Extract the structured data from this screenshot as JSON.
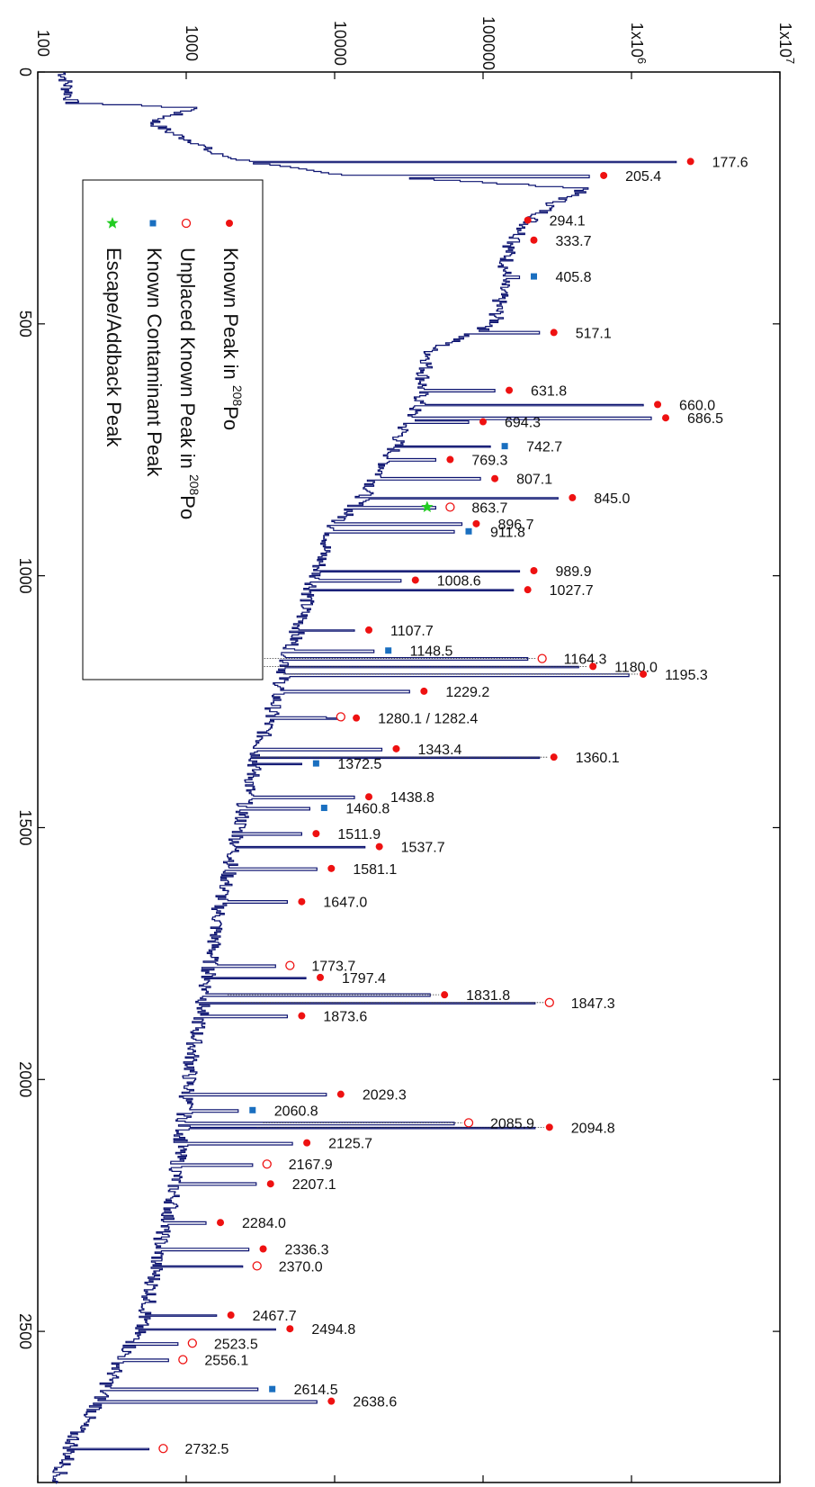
{
  "chart_data": {
    "type": "line",
    "orientation": "rotated-90",
    "x_axis": {
      "label": "",
      "range": [
        0,
        2800
      ],
      "ticks": [
        0,
        500,
        1000,
        1500,
        2000,
        2500
      ],
      "tick_labels": [
        "0",
        "500",
        "1000",
        "1500",
        "2000",
        "2500"
      ]
    },
    "y_axis": {
      "label": "",
      "scale": "log",
      "range": [
        100,
        10000000
      ],
      "ticks": [
        100,
        1000,
        10000,
        100000,
        1000000,
        10000000
      ],
      "tick_labels": [
        "100",
        "1000",
        "10000",
        "100000",
        "1x10^6",
        "1x10^7"
      ]
    },
    "spectrum": [
      [
        0,
        150
      ],
      [
        60,
        170
      ],
      [
        70,
        1200
      ],
      [
        80,
        900
      ],
      [
        90,
        700
      ],
      [
        100,
        600
      ],
      [
        120,
        800
      ],
      [
        140,
        1200
      ],
      [
        160,
        1500
      ],
      [
        180,
        3000
      ],
      [
        200,
        9000
      ],
      [
        230,
        500000
      ],
      [
        260,
        300000
      ],
      [
        300,
        200000
      ],
      [
        350,
        150000
      ],
      [
        400,
        140000
      ],
      [
        450,
        130000
      ],
      [
        500,
        120000
      ],
      [
        550,
        45000
      ],
      [
        600,
        40000
      ],
      [
        650,
        38000
      ],
      [
        700,
        30000
      ],
      [
        750,
        25000
      ],
      [
        800,
        20000
      ],
      [
        850,
        15000
      ],
      [
        900,
        10000
      ],
      [
        950,
        8500
      ],
      [
        1000,
        7500
      ],
      [
        1050,
        6500
      ],
      [
        1100,
        5800
      ],
      [
        1150,
        5000
      ],
      [
        1200,
        4500
      ],
      [
        1250,
        4000
      ],
      [
        1300,
        3500
      ],
      [
        1350,
        3000
      ],
      [
        1400,
        2800
      ],
      [
        1450,
        2500
      ],
      [
        1500,
        2300
      ],
      [
        1550,
        2100
      ],
      [
        1600,
        1900
      ],
      [
        1650,
        1700
      ],
      [
        1700,
        1600
      ],
      [
        1750,
        1500
      ],
      [
        1800,
        1400
      ],
      [
        1850,
        1300
      ],
      [
        1900,
        1200
      ],
      [
        1950,
        1100
      ],
      [
        2000,
        1050
      ],
      [
        2050,
        1000
      ],
      [
        2100,
        950
      ],
      [
        2150,
        900
      ],
      [
        2200,
        850
      ],
      [
        2250,
        800
      ],
      [
        2300,
        700
      ],
      [
        2350,
        650
      ],
      [
        2400,
        600
      ],
      [
        2450,
        550
      ],
      [
        2500,
        480
      ],
      [
        2550,
        380
      ],
      [
        2600,
        300
      ],
      [
        2650,
        250
      ],
      [
        2700,
        180
      ],
      [
        2750,
        160
      ],
      [
        2800,
        130
      ]
    ],
    "legend": {
      "placement": "top-left",
      "entries": [
        {
          "marker": "filled-circle",
          "color": "#ee1111",
          "text": "Known Peak in ",
          "sup": "208",
          "suffix": "Po"
        },
        {
          "marker": "open-circle",
          "color": "#ee1111",
          "text": "Unplaced Known Peak in ",
          "sup": "208",
          "suffix": "Po"
        },
        {
          "marker": "square",
          "color": "#1a6fc0",
          "text": "Known Contaminant Peak",
          "sup": "",
          "suffix": ""
        },
        {
          "marker": "star",
          "color": "#22cc22",
          "text": "Escape/Addback Peak",
          "sup": "",
          "suffix": ""
        }
      ]
    },
    "peaks": [
      {
        "energy": 177.6,
        "counts": 2500000,
        "marker": "filled-circle",
        "label": "177.6",
        "line": false
      },
      {
        "energy": 205.4,
        "counts": 650000,
        "marker": "filled-circle",
        "label": "205.4",
        "line": false
      },
      {
        "energy": 294.1,
        "counts": 200000,
        "marker": "filled-circle",
        "label": "294.1",
        "line": false
      },
      {
        "energy": 333.7,
        "counts": 220000,
        "marker": "filled-circle",
        "label": "333.7",
        "line": false
      },
      {
        "energy": 405.8,
        "counts": 220000,
        "marker": "square",
        "label": "405.8",
        "line": false
      },
      {
        "energy": 517.1,
        "counts": 300000,
        "marker": "filled-circle",
        "label": "517.1",
        "line": false
      },
      {
        "energy": 631.8,
        "counts": 150000,
        "marker": "filled-circle",
        "label": "631.8",
        "line": false
      },
      {
        "energy": 660.0,
        "counts": 1500000,
        "marker": "filled-circle",
        "label": "660.0",
        "line": false
      },
      {
        "energy": 686.5,
        "counts": 1700000,
        "marker": "filled-circle",
        "label": "686.5",
        "line": false
      },
      {
        "energy": 694.3,
        "counts": 100000,
        "marker": "filled-circle",
        "label": "694.3",
        "line": false
      },
      {
        "energy": 742.7,
        "counts": 140000,
        "marker": "square",
        "label": "742.7",
        "line": false
      },
      {
        "energy": 769.3,
        "counts": 60000,
        "marker": "filled-circle",
        "label": "769.3",
        "line": false
      },
      {
        "energy": 807.1,
        "counts": 120000,
        "marker": "filled-circle",
        "label": "807.1",
        "line": false
      },
      {
        "energy": 845.0,
        "counts": 400000,
        "marker": "filled-circle",
        "label": "845.0",
        "line": false
      },
      {
        "energy": 863.7,
        "counts": 60000,
        "marker": "open-circle",
        "label": "863.7",
        "line": false
      },
      {
        "energy": 863.7,
        "counts": 42000,
        "marker": "star",
        "label": "",
        "line": false
      },
      {
        "energy": 896.7,
        "counts": 90000,
        "marker": "filled-circle",
        "label": "896.7",
        "line": false
      },
      {
        "energy": 911.8,
        "counts": 80000,
        "marker": "square",
        "label": "911.8",
        "line": false
      },
      {
        "energy": 989.9,
        "counts": 220000,
        "marker": "filled-circle",
        "label": "989.9",
        "line": false
      },
      {
        "energy": 1008.6,
        "counts": 35000,
        "marker": "filled-circle",
        "label": "1008.6",
        "line": false
      },
      {
        "energy": 1027.7,
        "counts": 200000,
        "marker": "filled-circle",
        "label": "1027.7",
        "line": false
      },
      {
        "energy": 1107.7,
        "counts": 17000,
        "marker": "filled-circle",
        "label": "1107.7",
        "line": false
      },
      {
        "energy": 1148.5,
        "counts": 23000,
        "marker": "square",
        "label": "1148.5",
        "line": false
      },
      {
        "energy": 1164.3,
        "counts": 250000,
        "marker": "open-circle",
        "label": "1164.3",
        "line": true,
        "line_from": 2300
      },
      {
        "energy": 1180.0,
        "counts": 550000,
        "marker": "filled-circle",
        "label": "1180.0",
        "line": true,
        "line_from": 2600
      },
      {
        "energy": 1195.3,
        "counts": 1200000,
        "marker": "filled-circle",
        "label": "1195.3",
        "line": true,
        "line_from": 4500
      },
      {
        "energy": 1229.2,
        "counts": 40000,
        "marker": "filled-circle",
        "label": "1229.2",
        "line": false
      },
      {
        "energy": 1280.1,
        "counts": 11000,
        "marker": "open-circle",
        "label": "",
        "line": false
      },
      {
        "energy": 1282.4,
        "counts": 14000,
        "marker": "filled-circle",
        "label": "1280.1 / 1282.4",
        "line": false
      },
      {
        "energy": 1343.4,
        "counts": 26000,
        "marker": "filled-circle",
        "label": "1343.4",
        "line": false
      },
      {
        "energy": 1360.1,
        "counts": 300000,
        "marker": "filled-circle",
        "label": "1360.1",
        "line": true,
        "line_from": 3000
      },
      {
        "energy": 1372.5,
        "counts": 7500,
        "marker": "square",
        "label": "1372.5",
        "line": false
      },
      {
        "energy": 1438.8,
        "counts": 17000,
        "marker": "filled-circle",
        "label": "1438.8",
        "line": false
      },
      {
        "energy": 1460.8,
        "counts": 8500,
        "marker": "square",
        "label": "1460.8",
        "line": false
      },
      {
        "energy": 1511.9,
        "counts": 7500,
        "marker": "filled-circle",
        "label": "1511.9",
        "line": false
      },
      {
        "energy": 1537.7,
        "counts": 20000,
        "marker": "filled-circle",
        "label": "1537.7",
        "line": false
      },
      {
        "energy": 1581.1,
        "counts": 9500,
        "marker": "filled-circle",
        "label": "1581.1",
        "line": false
      },
      {
        "energy": 1647.0,
        "counts": 6000,
        "marker": "filled-circle",
        "label": "1647.0",
        "line": false
      },
      {
        "energy": 1773.7,
        "counts": 5000,
        "marker": "open-circle",
        "label": "1773.7",
        "line": false
      },
      {
        "energy": 1797.4,
        "counts": 8000,
        "marker": "filled-circle",
        "label": "1797.4",
        "line": false
      },
      {
        "energy": 1831.8,
        "counts": 55000,
        "marker": "filled-circle",
        "label": "1831.8",
        "line": true,
        "line_from": 1900
      },
      {
        "energy": 1847.3,
        "counts": 280000,
        "marker": "open-circle",
        "label": "1847.3",
        "line": true,
        "line_from": 2300
      },
      {
        "energy": 1873.6,
        "counts": 6000,
        "marker": "filled-circle",
        "label": "1873.6",
        "line": false
      },
      {
        "energy": 2029.3,
        "counts": 11000,
        "marker": "filled-circle",
        "label": "2029.3",
        "line": false
      },
      {
        "energy": 2060.8,
        "counts": 2800,
        "marker": "square",
        "label": "2060.8",
        "line": false
      },
      {
        "energy": 2085.9,
        "counts": 80000,
        "marker": "open-circle",
        "label": "2085.9",
        "line": true,
        "line_from": 3300
      },
      {
        "energy": 2094.8,
        "counts": 280000,
        "marker": "filled-circle",
        "label": "2094.8",
        "line": true,
        "line_from": 3000
      },
      {
        "energy": 2125.7,
        "counts": 6500,
        "marker": "filled-circle",
        "label": "2125.7",
        "line": false
      },
      {
        "energy": 2167.9,
        "counts": 3500,
        "marker": "open-circle",
        "label": "2167.9",
        "line": false
      },
      {
        "energy": 2207.1,
        "counts": 3700,
        "marker": "filled-circle",
        "label": "2207.1",
        "line": false
      },
      {
        "energy": 2284.0,
        "counts": 1700,
        "marker": "filled-circle",
        "label": "2284.0",
        "line": false
      },
      {
        "energy": 2336.3,
        "counts": 3300,
        "marker": "filled-circle",
        "label": "2336.3",
        "line": false
      },
      {
        "energy": 2370.0,
        "counts": 3000,
        "marker": "open-circle",
        "label": "2370.0",
        "line": false
      },
      {
        "energy": 2467.7,
        "counts": 2000,
        "marker": "filled-circle",
        "label": "2467.7",
        "line": false
      },
      {
        "energy": 2494.8,
        "counts": 5000,
        "marker": "filled-circle",
        "label": "2494.8",
        "line": false
      },
      {
        "energy": 2523.5,
        "counts": 1100,
        "marker": "open-circle",
        "label": "2523.5",
        "line": false
      },
      {
        "energy": 2556.1,
        "counts": 950,
        "marker": "open-circle",
        "label": "2556.1",
        "line": false
      },
      {
        "energy": 2614.5,
        "counts": 3800,
        "marker": "square",
        "label": "2614.5",
        "line": false
      },
      {
        "energy": 2638.6,
        "counts": 9500,
        "marker": "filled-circle",
        "label": "2638.6",
        "line": false
      },
      {
        "energy": 2732.5,
        "counts": 700,
        "marker": "open-circle",
        "label": "2732.5",
        "line": false
      }
    ]
  }
}
